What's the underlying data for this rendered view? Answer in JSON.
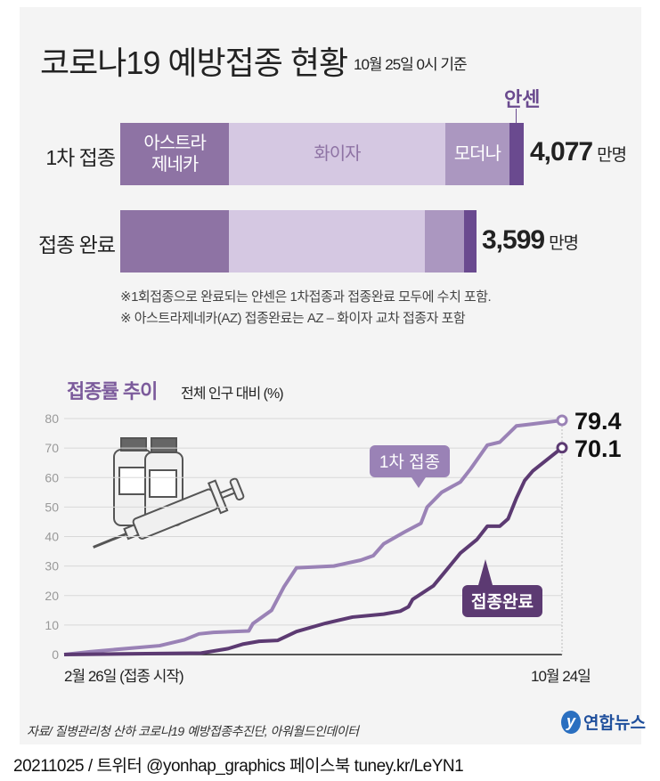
{
  "header": {
    "title": "코로나19 예방접종 현황",
    "subtitle": "10월 25일 0시 기준"
  },
  "vaccines": {
    "labels": [
      "아스트라\n제네카",
      "화이자",
      "모더나",
      "안센"
    ],
    "colors": [
      "#8e73a4",
      "#d5c8e2",
      "#ab97c0",
      "#6a4a8f"
    ],
    "label_colors": [
      "#ffffff",
      "#8e73a4",
      "#ffffff",
      "#ffffff"
    ]
  },
  "bars": [
    {
      "label": "1차 접종",
      "total": "4,077",
      "unit": "만명",
      "shares": [
        27,
        53.5,
        16,
        3.5
      ]
    },
    {
      "label": "접종 완료",
      "total": "3,599",
      "unit": "만명",
      "shares": [
        30.5,
        55,
        11,
        3.5
      ]
    }
  ],
  "notes": [
    "※1회접종으로 완료되는 얀센은 1차접종과 접종완료 모두에 수치 포함.",
    "※ 아스트라제네카(AZ) 접종완료는 AZ – 화이자 교차 접종자 포함"
  ],
  "chart_data": {
    "type": "line",
    "title": "접종률 추이",
    "subtitle": "전체 인구 대비 (%)",
    "xlabel": "",
    "ylabel": "%",
    "x_tick_labels": [
      "2월 26일 (접종 시작)",
      "10월 24일"
    ],
    "xlim_days": [
      0,
      240
    ],
    "ylim": [
      0,
      80
    ],
    "y_ticks": [
      0,
      10,
      20,
      30,
      40,
      50,
      60,
      70,
      80
    ],
    "grid": true,
    "series": [
      {
        "name": "1차 접종",
        "color": "#9a82b6",
        "end_label": "79.4",
        "points": [
          [
            0,
            0
          ],
          [
            13,
            1
          ],
          [
            46,
            3
          ],
          [
            58,
            5
          ],
          [
            65,
            7
          ],
          [
            72,
            7.5
          ],
          [
            89,
            8
          ],
          [
            91,
            10.5
          ],
          [
            100,
            15
          ],
          [
            106,
            23
          ],
          [
            112,
            29.4
          ],
          [
            130,
            30
          ],
          [
            143,
            32
          ],
          [
            149,
            33.5
          ],
          [
            154,
            37.5
          ],
          [
            164,
            41.5
          ],
          [
            172,
            44.5
          ],
          [
            175,
            50
          ],
          [
            182,
            55
          ],
          [
            191,
            58.5
          ],
          [
            196,
            63
          ],
          [
            204,
            71
          ],
          [
            210,
            72
          ],
          [
            218,
            77.5
          ],
          [
            224,
            78
          ],
          [
            240,
            79.4
          ]
        ]
      },
      {
        "name": "접종완료",
        "color": "#5c3a72",
        "end_label": "70.1",
        "points": [
          [
            0,
            0
          ],
          [
            66,
            0.5
          ],
          [
            79,
            2
          ],
          [
            86,
            3.5
          ],
          [
            94,
            4.5
          ],
          [
            103,
            4.8
          ],
          [
            112,
            7.8
          ],
          [
            126,
            10.6
          ],
          [
            139,
            12.7
          ],
          [
            154,
            13.7
          ],
          [
            162,
            14.7
          ],
          [
            166,
            16.2
          ],
          [
            168,
            18.7
          ],
          [
            178,
            23.3
          ],
          [
            184,
            28.4
          ],
          [
            191,
            34.4
          ],
          [
            199,
            39
          ],
          [
            204,
            43.5
          ],
          [
            210,
            43.5
          ],
          [
            214,
            46
          ],
          [
            218,
            53
          ],
          [
            222,
            59
          ],
          [
            226,
            62.3
          ],
          [
            240,
            70.1
          ]
        ]
      }
    ]
  },
  "source": "자료/ 질병관리청 산하 코로나19 예방접종추진단, 아워월드인데이터",
  "logo": {
    "mark": "y",
    "text": "연합뉴스"
  },
  "footer": "20211025 / 트위터 @yonhap_graphics  페이스북 tuney.kr/LeYN1"
}
